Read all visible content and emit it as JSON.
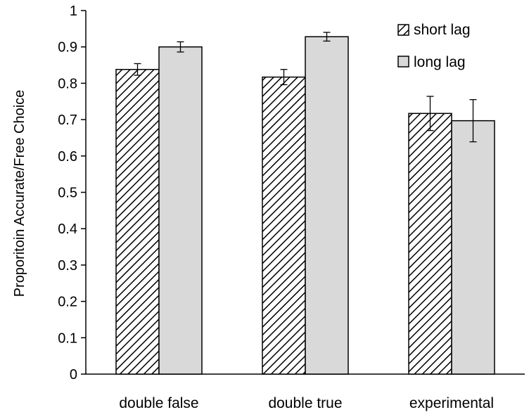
{
  "chart_data": {
    "type": "bar",
    "title": "",
    "xlabel": "",
    "ylabel": "Proporitoin Accurate/Free Choice",
    "ylim": [
      0,
      1
    ],
    "yticks": [
      "0",
      "0.1",
      "0.2",
      "0.3",
      "0.4",
      "0.5",
      "0.6",
      "0.7",
      "0.8",
      "0.9",
      "1"
    ],
    "categories": [
      "double false",
      "double true",
      "experimental"
    ],
    "series": [
      {
        "name": "short lag",
        "pattern": "diagonal-hatch",
        "fill": "#ffffff",
        "stroke": "#000000",
        "values": [
          0.838,
          0.817,
          0.717
        ],
        "errors": [
          0.016,
          0.021,
          0.047
        ]
      },
      {
        "name": "long lag",
        "pattern": "solid",
        "fill": "#d9d9d9",
        "stroke": "#000000",
        "values": [
          0.9,
          0.928,
          0.697
        ],
        "errors": [
          0.014,
          0.012,
          0.058
        ]
      }
    ],
    "grid": false,
    "legend_position": "top-right"
  }
}
